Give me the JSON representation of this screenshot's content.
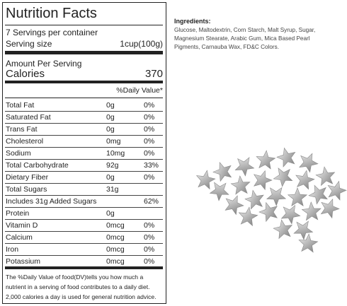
{
  "label": {
    "title": "Nutrition Facts",
    "servings": "7 Servings per container",
    "serving_size_label": "Serving size",
    "serving_size_value": "1cup(100g)",
    "amount_per_serving": "Amount Per Serving",
    "calories_label": "Calories",
    "calories_value": "370",
    "daily_value_header": "%Daily Value*",
    "rows": [
      {
        "name": "Total Fat",
        "amount": "0g",
        "dv": "0%"
      },
      {
        "name": "Saturated Fat",
        "amount": "0g",
        "dv": "0%"
      },
      {
        "name": "Trans Fat",
        "amount": "0g",
        "dv": "0%"
      },
      {
        "name": "Cholesterol",
        "amount": "0mg",
        "dv": "0%"
      },
      {
        "name": "Sodium",
        "amount": "10mg",
        "dv": "0%"
      },
      {
        "name": "Total Carbohydrate",
        "amount": "92g",
        "dv": "33%"
      },
      {
        "name": "Dietary Fiber",
        "amount": "0g",
        "dv": "0%"
      },
      {
        "name": "Total Sugars",
        "amount": "31g"
      },
      {
        "name": "Includes 31g Added Sugars",
        "dv": "62%"
      },
      {
        "name": "Protein",
        "amount": "0g"
      },
      {
        "name": "Vitamin D",
        "amount": "0mcg",
        "dv": "0%"
      },
      {
        "name": "Calcium",
        "amount": "0mcg",
        "dv": "0%"
      },
      {
        "name": "Iron",
        "amount": "0mcg",
        "dv": "0%"
      },
      {
        "name": "Potassium",
        "amount": "0mcg",
        "dv": "0%"
      }
    ],
    "footnote": "The %Daily Value of food(DV)tells you how much a nutrient in a serving of food contributes to a daily diet. 2,000 calories a day is used for general nutrition advice."
  },
  "ingredients": {
    "heading": "Ingredients:",
    "text": "Glucose, Maltodextrin, Corn Starch, Malt Syrup, Sugar, Magnesium Stearate, Arabic Gum, Mica Based Pearl Pigments, Carnauba Wax, FD&C Colors."
  }
}
